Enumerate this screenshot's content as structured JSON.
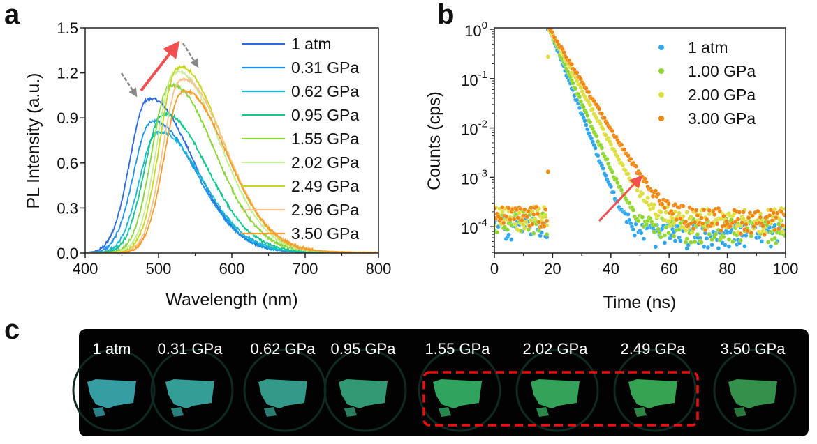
{
  "panels": {
    "a": "a",
    "b": "b",
    "c": "c"
  },
  "chart_data": [
    {
      "type": "line",
      "panel": "a",
      "xlabel": "Wavelength (nm)",
      "ylabel": "PL Intensity (a.u.)",
      "xlim": [
        400,
        800
      ],
      "ylim": [
        0,
        1.5
      ],
      "xticks": [
        "400",
        "500",
        "600",
        "700",
        "800"
      ],
      "yticks": [
        "0.0",
        "0.3",
        "0.6",
        "0.9",
        "1.2",
        "1.5"
      ],
      "legend_position": "top-right",
      "series": [
        {
          "name": "1 atm",
          "color": "#2a6ae6",
          "peak_wavelength": 485,
          "peak_intensity": 1.02
        },
        {
          "name": "0.31 GPa",
          "color": "#1a92f0",
          "peak_wavelength": 490,
          "peak_intensity": 0.87
        },
        {
          "name": "0.62 GPa",
          "color": "#18b6d6",
          "peak_wavelength": 498,
          "peak_intensity": 0.8
        },
        {
          "name": "0.95 GPa",
          "color": "#10c88c",
          "peak_wavelength": 505,
          "peak_intensity": 0.92
        },
        {
          "name": "1.55 GPa",
          "color": "#8ad63a",
          "peak_wavelength": 515,
          "peak_intensity": 1.11
        },
        {
          "name": "2.02 GPa",
          "color": "#c6ee9a",
          "peak_wavelength": 522,
          "peak_intensity": 1.2
        },
        {
          "name": "2.49 GPa",
          "color": "#c8d61a",
          "peak_wavelength": 526,
          "peak_intensity": 1.23
        },
        {
          "name": "2.96 GPa",
          "color": "#f6c48c",
          "peak_wavelength": 530,
          "peak_intensity": 1.15
        },
        {
          "name": "3.50 GPa",
          "color": "#f89c2c",
          "peak_wavelength": 532,
          "peak_intensity": 1.07
        }
      ],
      "annotations": {
        "trend_arrow_color": "#f44f4f",
        "dashed_arrow_color": "#888888"
      }
    },
    {
      "type": "scatter",
      "panel": "b",
      "xlabel": "Time (ns)",
      "ylabel": "Counts (cps)",
      "xlim": [
        0,
        100
      ],
      "ylim": [
        3e-05,
        1
      ],
      "yscale": "log",
      "xticks": [
        "0",
        "20",
        "40",
        "60",
        "80",
        "100"
      ],
      "ytick_base": "10",
      "ytick_exponents": [
        "0",
        "-1",
        "-2",
        "-3",
        "-4"
      ],
      "legend_position": "top-right",
      "series": [
        {
          "name": "1 atm",
          "color": "#2ea6ee",
          "onset_ns": 18.5,
          "lifetime_ns": 2.8,
          "background": 7e-05
        },
        {
          "name": "1.00 GPa",
          "color": "#8ed62e",
          "onset_ns": 18.5,
          "lifetime_ns": 3.2,
          "background": 9e-05
        },
        {
          "name": "2.00 GPa",
          "color": "#dede3a",
          "onset_ns": 18.5,
          "lifetime_ns": 3.9,
          "background": 0.00014
        },
        {
          "name": "3.00 GPa",
          "color": "#f0860e",
          "onset_ns": 18.5,
          "lifetime_ns": 4.5,
          "background": 0.00014
        }
      ],
      "annotations": {
        "trend_arrow_color": "#f44f4f"
      }
    }
  ],
  "photos": {
    "labels": [
      "1 atm",
      "0.31 GPa",
      "0.62 GPa",
      "0.95 GPa",
      "1.55 GPa",
      "2.02 GPa",
      "2.49 GPa",
      "3.50 GPa"
    ],
    "colors": [
      "#3fb8c0",
      "#3cb8b0",
      "#3cb4a0",
      "#3cb488",
      "#38c070",
      "#3cc068",
      "#40c060",
      "#3caa58"
    ],
    "highlight_color": "#e81010"
  }
}
